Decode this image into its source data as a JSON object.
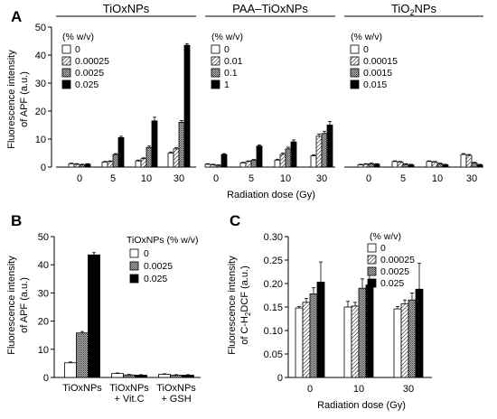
{
  "chart_data": [
    {
      "panel": "A",
      "type": "bar",
      "ylabel": "Fluorescence intensity of APF (a.u.)",
      "xlabel": "Radiation dose (Gy)",
      "yticks": [
        0,
        10,
        20,
        30,
        40,
        50
      ],
      "ylim": [
        0,
        50
      ],
      "groups": [
        {
          "title": "TiOxNPs",
          "legend_title": "(% w/v)",
          "categories": [
            "0",
            "5",
            "10",
            "30"
          ],
          "series": [
            {
              "name": "0",
              "pattern": "white",
              "values": [
                1.2,
                1.8,
                2.2,
                5.0
              ],
              "errors": [
                0.2,
                0.2,
                0.3,
                0.4
              ]
            },
            {
              "name": "0.00025",
              "pattern": "hatch",
              "values": [
                1.0,
                2.0,
                3.0,
                6.5
              ],
              "errors": [
                0.2,
                0.2,
                0.3,
                0.4
              ]
            },
            {
              "name": "0.0025",
              "pattern": "gray",
              "values": [
                0.8,
                4.5,
                7.0,
                16.0
              ],
              "errors": [
                0.2,
                0.3,
                0.5,
                0.6
              ]
            },
            {
              "name": "0.025",
              "pattern": "black",
              "values": [
                1.0,
                10.5,
                16.5,
                43.5
              ],
              "errors": [
                0.2,
                0.5,
                1.3,
                0.6
              ]
            }
          ]
        },
        {
          "title": "PAA–TiOxNPs",
          "legend_title": "(% w/v)",
          "categories": [
            "0",
            "5",
            "10",
            "30"
          ],
          "series": [
            {
              "name": "0",
              "pattern": "white",
              "values": [
                1.0,
                1.5,
                2.5,
                4.0
              ],
              "errors": [
                0.2,
                0.2,
                0.3,
                0.4
              ]
            },
            {
              "name": "0.01",
              "pattern": "hatch",
              "values": [
                0.8,
                2.0,
                4.5,
                11.0
              ],
              "errors": [
                0.2,
                0.2,
                0.5,
                0.8
              ]
            },
            {
              "name": "0.1",
              "pattern": "gray",
              "values": [
                0.6,
                2.5,
                6.5,
                12.0
              ],
              "errors": [
                0.2,
                0.2,
                0.6,
                0.8
              ]
            },
            {
              "name": "1",
              "pattern": "black",
              "values": [
                4.5,
                7.5,
                9.0,
                15.0
              ],
              "errors": [
                0.3,
                0.4,
                0.7,
                1.3
              ]
            }
          ]
        },
        {
          "title_parts": [
            "TiO",
            "2",
            "NPs"
          ],
          "legend_title": "(% w/v)",
          "categories": [
            "0",
            "5",
            "10",
            "30"
          ],
          "series": [
            {
              "name": "0",
              "pattern": "white",
              "values": [
                0.8,
                2.0,
                2.0,
                4.5
              ],
              "errors": [
                0.2,
                0.2,
                0.2,
                0.3
              ]
            },
            {
              "name": "0.00015",
              "pattern": "hatch",
              "values": [
                1.0,
                1.8,
                1.8,
                4.2
              ],
              "errors": [
                0.2,
                0.2,
                0.2,
                0.3
              ]
            },
            {
              "name": "0.0015",
              "pattern": "gray",
              "values": [
                1.2,
                1.0,
                1.2,
                1.5
              ],
              "errors": [
                0.2,
                0.2,
                0.2,
                0.2
              ]
            },
            {
              "name": "0.015",
              "pattern": "black",
              "values": [
                1.0,
                0.8,
                0.8,
                0.8
              ],
              "errors": [
                0.2,
                0.2,
                0.2,
                0.2
              ]
            }
          ]
        }
      ]
    },
    {
      "panel": "B",
      "type": "bar",
      "ylabel": "Fluorescence intensity of APF (a.u.)",
      "xlabel": "",
      "yticks": [
        0,
        10,
        20,
        30,
        40,
        50
      ],
      "ylim": [
        0,
        50
      ],
      "legend_title": "TiOxNPs (% w/v)",
      "categories": [
        [
          "TiOxNPs"
        ],
        [
          "TiOxNPs",
          "+ Vit.C"
        ],
        [
          "TiOxNPs",
          "+ GSH"
        ]
      ],
      "series": [
        {
          "name": "0",
          "pattern": "white",
          "values": [
            5.2,
            1.4,
            1.1
          ],
          "errors": [
            0.3,
            0.2,
            0.2
          ]
        },
        {
          "name": "0.0025",
          "pattern": "gray",
          "values": [
            15.8,
            0.9,
            0.8
          ],
          "errors": [
            0.5,
            0.2,
            0.2
          ]
        },
        {
          "name": "0.025",
          "pattern": "black",
          "values": [
            43.5,
            0.8,
            0.8
          ],
          "errors": [
            0.8,
            0.2,
            0.2
          ]
        }
      ]
    },
    {
      "panel": "C",
      "type": "bar",
      "ylabel": "Fluorescence intensity of C-H2DCF (a.u.)",
      "ylabel_parts": [
        "Fluorescence intensity",
        "of C-H",
        "2",
        "DCF (a.u.)"
      ],
      "xlabel": "Radiation dose (Gy)",
      "yticks": [
        "0",
        "0.05",
        "0.10",
        "0.15",
        "0.20",
        "0.25",
        "0.30"
      ],
      "ylim": [
        0,
        0.3
      ],
      "legend_title": "(% w/v)",
      "categories": [
        "0",
        "10",
        "30"
      ],
      "series": [
        {
          "name": "0",
          "pattern": "white",
          "values": [
            0.148,
            0.15,
            0.146
          ],
          "errors": [
            0.003,
            0.012,
            0.005
          ]
        },
        {
          "name": "0.00025",
          "pattern": "hatch",
          "values": [
            0.16,
            0.152,
            0.157
          ],
          "errors": [
            0.008,
            0.008,
            0.008
          ]
        },
        {
          "name": "0.0025",
          "pattern": "gray",
          "values": [
            0.178,
            0.19,
            0.165
          ],
          "errors": [
            0.013,
            0.02,
            0.015
          ]
        },
        {
          "name": "0.025",
          "pattern": "black",
          "values": [
            0.203,
            0.197,
            0.188
          ],
          "errors": [
            0.043,
            0.037,
            0.055
          ]
        }
      ]
    }
  ]
}
